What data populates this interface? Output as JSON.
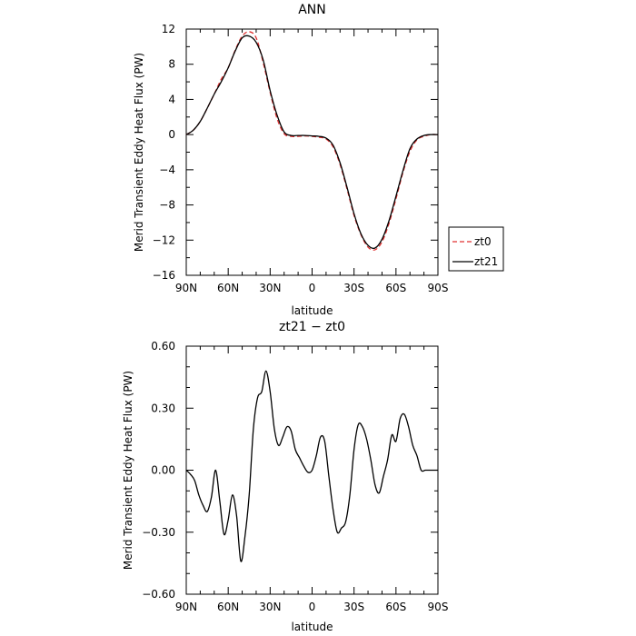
{
  "chart_data": [
    {
      "type": "line",
      "title": "ANN",
      "xlabel": "latitude",
      "ylabel": "Merid Transient Eddy Heat Flux (PW)",
      "xlim": [
        90,
        -90
      ],
      "ylim": [
        -16,
        12
      ],
      "x_ticks": [
        90,
        60,
        30,
        0,
        -30,
        -60,
        -90
      ],
      "x_tick_labels": [
        "90N",
        "60N",
        "30N",
        "0",
        "30S",
        "60S",
        "90S"
      ],
      "y_ticks": [
        12,
        8,
        4,
        0,
        -4,
        -8,
        -12,
        -16
      ],
      "y_tick_labels": [
        "12",
        "8",
        "4",
        "0",
        "−4",
        "−8",
        "−12",
        "−16"
      ],
      "legend": {
        "placement": "right",
        "entries": [
          "zt0",
          "zt21"
        ]
      },
      "series": [
        {
          "name": "zt0",
          "color": "#e03030",
          "dash": "dashed",
          "x": [
            90,
            85,
            80,
            75,
            70,
            65,
            60,
            55,
            50,
            45,
            40,
            35,
            30,
            25,
            20,
            15,
            10,
            5,
            0,
            -5,
            -10,
            -15,
            -20,
            -25,
            -30,
            -35,
            -40,
            -45,
            -50,
            -55,
            -60,
            -65,
            -70,
            -75,
            -80,
            -85,
            -90
          ],
          "y": [
            0.0,
            0.5,
            1.5,
            3.0,
            4.6,
            6.3,
            7.6,
            9.6,
            11.2,
            11.7,
            11.0,
            8.2,
            4.8,
            1.8,
            0.1,
            -0.2,
            -0.2,
            -0.15,
            -0.2,
            -0.3,
            -0.5,
            -1.4,
            -3.4,
            -6.2,
            -9.2,
            -11.4,
            -12.8,
            -13.1,
            -12.2,
            -10.1,
            -7.3,
            -4.3,
            -1.9,
            -0.6,
            -0.2,
            0.0,
            0.0
          ]
        },
        {
          "name": "zt21",
          "color": "#000000",
          "dash": "solid",
          "x": [
            90,
            85,
            80,
            75,
            70,
            65,
            60,
            55,
            50,
            45,
            40,
            35,
            30,
            25,
            20,
            15,
            10,
            5,
            0,
            -5,
            -10,
            -15,
            -20,
            -25,
            -30,
            -35,
            -40,
            -45,
            -50,
            -55,
            -60,
            -65,
            -70,
            -75,
            -80,
            -85,
            -90
          ],
          "y": [
            0.0,
            0.5,
            1.5,
            3.0,
            4.6,
            6.0,
            7.6,
            9.5,
            11.0,
            11.2,
            10.5,
            8.5,
            5.0,
            2.2,
            0.3,
            -0.1,
            -0.1,
            -0.1,
            -0.15,
            -0.2,
            -0.4,
            -1.2,
            -3.2,
            -6.0,
            -9.0,
            -11.3,
            -12.6,
            -12.9,
            -11.9,
            -9.8,
            -7.0,
            -4.1,
            -1.6,
            -0.5,
            -0.1,
            0.0,
            0.0
          ]
        }
      ]
    },
    {
      "type": "line",
      "title": "zt21 − zt0",
      "xlabel": "latitude",
      "ylabel": "Merid Transient Eddy Heat Flux (PW)",
      "xlim": [
        90,
        -90
      ],
      "ylim": [
        -0.6,
        0.6
      ],
      "x_ticks": [
        90,
        60,
        30,
        0,
        -30,
        -60,
        -90
      ],
      "x_tick_labels": [
        "90N",
        "60N",
        "30N",
        "0",
        "30S",
        "60S",
        "90S"
      ],
      "y_ticks": [
        0.6,
        0.3,
        0,
        -0.3,
        -0.6
      ],
      "y_tick_labels": [
        "0.60",
        "0.30",
        "0.00",
        "−0.30",
        "−0.60"
      ],
      "series": [
        {
          "color": "#000000",
          "dash": "solid",
          "x": [
            90,
            87,
            84,
            81,
            78,
            75,
            72,
            69,
            66,
            63,
            60,
            57,
            54,
            51,
            48,
            45,
            42,
            39,
            36,
            33,
            30,
            27,
            24,
            21,
            18,
            15,
            12,
            9,
            6,
            3,
            0,
            -3,
            -6,
            -9,
            -12,
            -15,
            -18,
            -21,
            -24,
            -27,
            -30,
            -33,
            -36,
            -39,
            -42,
            -45,
            -48,
            -51,
            -54,
            -57,
            -60,
            -63,
            -66,
            -69,
            -72,
            -75,
            -78,
            -81,
            -84,
            -87,
            -90
          ],
          "y": [
            0.0,
            -0.02,
            -0.05,
            -0.12,
            -0.17,
            -0.2,
            -0.13,
            0.0,
            -0.15,
            -0.31,
            -0.24,
            -0.12,
            -0.22,
            -0.44,
            -0.32,
            -0.12,
            0.2,
            0.35,
            0.38,
            0.48,
            0.38,
            0.2,
            0.12,
            0.16,
            0.21,
            0.19,
            0.1,
            0.06,
            0.02,
            -0.01,
            0.0,
            0.07,
            0.16,
            0.14,
            -0.03,
            -0.19,
            -0.3,
            -0.28,
            -0.25,
            -0.12,
            0.1,
            0.22,
            0.21,
            0.15,
            0.05,
            -0.07,
            -0.11,
            -0.03,
            0.05,
            0.17,
            0.14,
            0.25,
            0.27,
            0.21,
            0.12,
            0.07,
            0.0,
            0.0,
            0.0,
            0.0,
            0.0
          ]
        }
      ]
    }
  ]
}
